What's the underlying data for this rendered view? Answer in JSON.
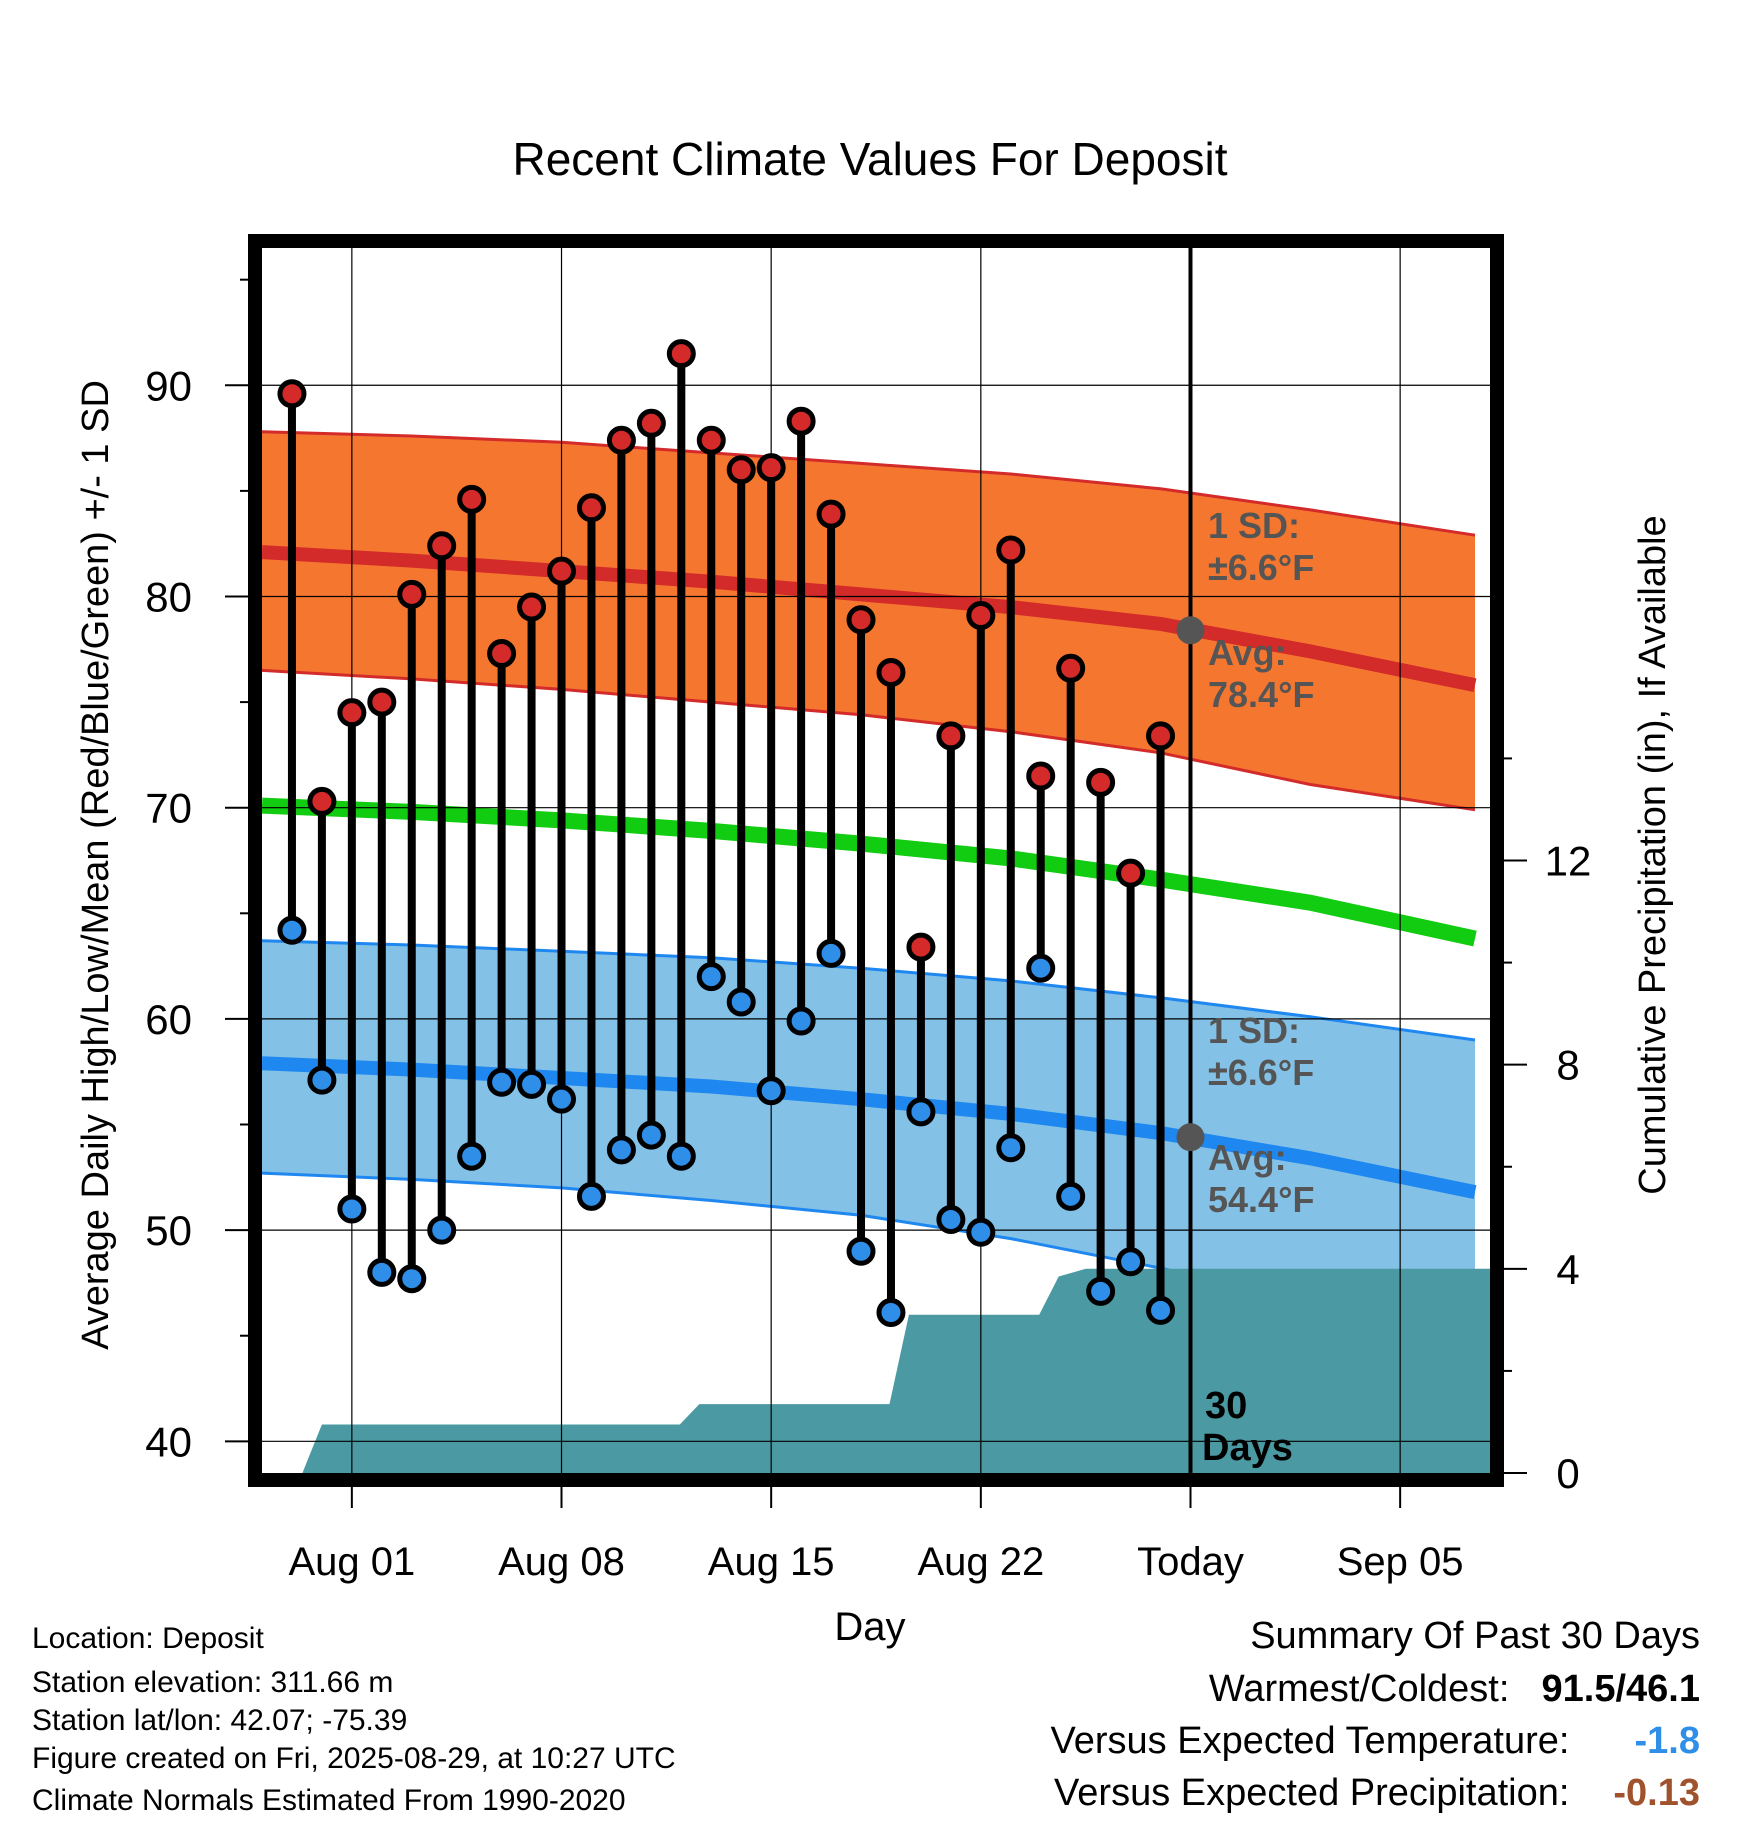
{
  "chart_data": {
    "type": "line",
    "title": "Recent Climate Values For Deposit",
    "xlabel": "Day",
    "ylabel": "Average Daily High/Low/Mean (Red/Blue/Green) +/- 1 SD",
    "y2label": "Cumulative Precipitation (in), If Available",
    "x_tick_labels": [
      "Aug 01",
      "Aug 08",
      "Aug 15",
      "Aug 22",
      "Today",
      "Sep 05"
    ],
    "x_tick_days": [
      0,
      7,
      14,
      21,
      28,
      35
    ],
    "xlim_days": [
      -3,
      38
    ],
    "ylim": [
      38.5,
      96.5
    ],
    "y_ticks": [
      40,
      50,
      60,
      70,
      80,
      90
    ],
    "y2lim": [
      0,
      24
    ],
    "y2_ticks": [
      0,
      4,
      8,
      12
    ],
    "grid": true,
    "today_day": 28,
    "normals": {
      "days": [
        -3,
        2,
        7,
        12,
        17,
        22,
        27,
        32,
        37.5
      ],
      "high_avg": [
        82.1,
        81.7,
        81.2,
        80.7,
        80.1,
        79.5,
        78.7,
        77.4,
        75.8
      ],
      "high_upper": [
        87.8,
        87.6,
        87.3,
        86.8,
        86.3,
        85.8,
        85.1,
        84.1,
        82.9
      ],
      "high_lower": [
        76.5,
        76.1,
        75.6,
        75.0,
        74.4,
        73.6,
        72.6,
        71.1,
        69.9
      ],
      "mean": [
        70.1,
        69.8,
        69.4,
        68.9,
        68.3,
        67.6,
        66.6,
        65.5,
        63.8
      ],
      "low_avg": [
        57.9,
        57.6,
        57.2,
        56.8,
        56.2,
        55.5,
        54.6,
        53.4,
        51.8
      ],
      "low_upper": [
        63.7,
        63.5,
        63.2,
        62.9,
        62.4,
        61.8,
        61.0,
        60.1,
        59.0
      ],
      "low_lower": [
        52.7,
        52.4,
        52.0,
        51.4,
        50.7,
        49.6,
        48.2,
        46.6,
        45.0
      ]
    },
    "high_label": {
      "sd": "1 SD:",
      "sd_value": "±6.6°F",
      "avg": "Avg:",
      "avg_value": "78.4°F"
    },
    "low_label": {
      "sd": "1 SD:",
      "sd_value": "±6.6°F",
      "avg": "Avg:",
      "avg_value": "54.4°F"
    },
    "period_label": [
      "30",
      "Days"
    ],
    "series": [
      {
        "name": "High",
        "days": [
          -2,
          -1,
          0,
          1,
          2,
          3,
          4,
          5,
          6,
          7,
          8,
          9,
          10,
          11,
          12,
          13,
          14,
          15,
          16,
          17,
          18,
          19,
          20,
          21,
          22,
          23,
          24,
          25,
          26,
          27
        ],
        "values": [
          89.6,
          70.3,
          74.5,
          75.0,
          80.1,
          82.4,
          84.6,
          77.3,
          79.5,
          81.2,
          84.2,
          87.4,
          88.2,
          91.5,
          87.4,
          86.0,
          86.1,
          88.3,
          83.9,
          78.9,
          76.4,
          63.4,
          73.4,
          79.1,
          82.2,
          71.5,
          76.6,
          71.2,
          66.9,
          73.4
        ]
      },
      {
        "name": "Low",
        "days": [
          -2,
          -1,
          0,
          1,
          2,
          3,
          4,
          5,
          6,
          7,
          8,
          9,
          10,
          11,
          12,
          13,
          14,
          15,
          16,
          17,
          18,
          19,
          20,
          21,
          22,
          23,
          24,
          25,
          26,
          27
        ],
        "values": [
          64.2,
          57.1,
          51.0,
          48.0,
          47.7,
          50.0,
          53.5,
          57.0,
          56.9,
          56.2,
          51.6,
          53.8,
          54.5,
          53.5,
          62.0,
          60.8,
          56.6,
          59.9,
          63.1,
          49.0,
          46.1,
          55.6,
          50.5,
          49.9,
          53.9,
          62.4,
          51.6,
          47.1,
          48.5,
          46.2
        ]
      },
      {
        "name": "Cumulative Precipitation",
        "days": [
          -1.65,
          -1.0,
          10.95,
          11.6,
          17.95,
          18.6,
          22.95,
          23.6,
          24.5,
          38
        ],
        "values": [
          0,
          0.95,
          0.95,
          1.35,
          1.35,
          3.1,
          3.1,
          3.85,
          4.0,
          4.0
        ]
      }
    ]
  },
  "footer": {
    "location": "Location: Deposit",
    "elevation": "Station elevation: 311.66 m",
    "latlon": "Station lat/lon: 42.07; -75.39",
    "created": "Figure created on Fri, 2025-08-29, at 10:27 UTC",
    "normals": "Climate Normals Estimated From 1990-2020"
  },
  "summary": {
    "title": "Summary Of Past 30 Days",
    "warm_cold_label": "Warmest/Coldest:",
    "warm_cold_value": "91.5/46.1",
    "temp_label": "Versus Expected Temperature:",
    "temp_value": "-1.8",
    "precip_label": "Versus Expected Precipitation:",
    "precip_value": "-0.13"
  },
  "colors": {
    "high_band": "#f5772f",
    "high_avg": "#d32a2a",
    "low_band": "#84c1e6",
    "low_avg": "#1e88f0",
    "mean": "#11cc11",
    "precip": "#4b9aa3",
    "high_marker": "#d42a2a",
    "low_marker": "#2f8fe8",
    "label_gray": "#555555",
    "temp_value": "#2f8fe8",
    "precip_value": "#a0522d"
  }
}
